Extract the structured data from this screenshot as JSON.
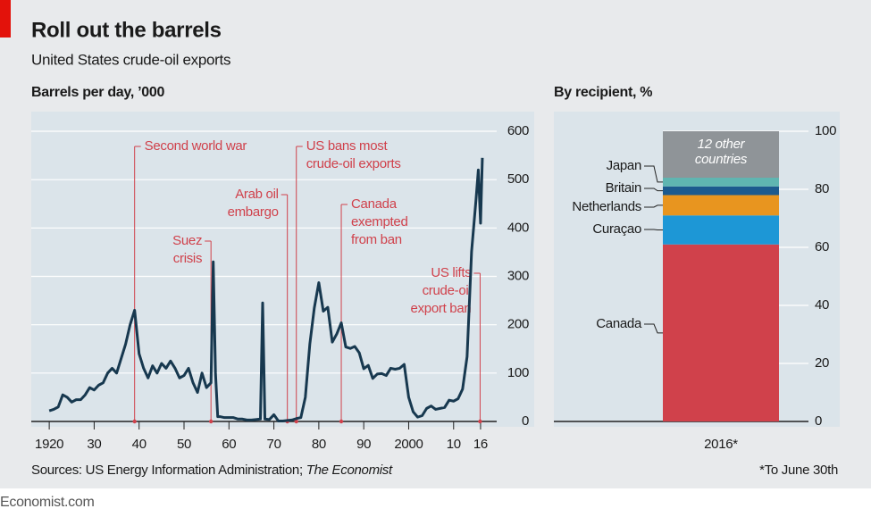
{
  "title": "Roll out the barrels",
  "subtitle": "United States crude-oil exports",
  "brand": "Economist.com",
  "source": [
    "Sources: US Energy Information Administration; ",
    "The Economist"
  ],
  "chart_data": [
    {
      "type": "line",
      "title": "Barrels per day, ’000",
      "color": "#17384f",
      "x": [
        1920,
        1921,
        1922,
        1923,
        1924,
        1925,
        1926,
        1927,
        1928,
        1929,
        1930,
        1931,
        1932,
        1933,
        1934,
        1935,
        1936,
        1937,
        1938,
        1939,
        1940,
        1941,
        1942,
        1943,
        1944,
        1945,
        1946,
        1947,
        1948,
        1949,
        1950,
        1951,
        1952,
        1953,
        1954,
        1955,
        1956,
        1956.5,
        1957,
        1957.5,
        1958,
        1959,
        1960,
        1961,
        1962,
        1963,
        1964,
        1965,
        1966,
        1967,
        1967.5,
        1968,
        1969,
        1970,
        1971,
        1972,
        1973,
        1974,
        1975,
        1976,
        1977,
        1978,
        1979,
        1980,
        1981,
        1982,
        1983,
        1984,
        1985,
        1986,
        1987,
        1988,
        1989,
        1990,
        1991,
        1992,
        1993,
        1994,
        1995,
        1996,
        1997,
        1998,
        1999,
        2000,
        2001,
        2002,
        2003,
        2004,
        2005,
        2006,
        2007,
        2008,
        2009,
        2010,
        2011,
        2012,
        2013,
        2014,
        2015,
        2015.5,
        2016,
        2016.4
      ],
      "values": [
        22,
        25,
        30,
        55,
        50,
        40,
        45,
        45,
        55,
        70,
        65,
        75,
        80,
        100,
        110,
        100,
        130,
        160,
        200,
        230,
        140,
        110,
        90,
        115,
        100,
        120,
        110,
        125,
        110,
        90,
        95,
        110,
        80,
        60,
        100,
        70,
        80,
        330,
        100,
        10,
        10,
        8,
        8,
        8,
        5,
        5,
        3,
        3,
        4,
        5,
        245,
        5,
        4,
        14,
        1,
        1,
        2,
        3,
        6,
        8,
        50,
        160,
        235,
        287,
        228,
        236,
        164,
        181,
        204,
        154,
        151,
        155,
        142,
        109,
        116,
        89,
        98,
        99,
        95,
        110,
        108,
        110,
        118,
        50,
        20,
        9,
        12,
        27,
        32,
        25,
        27,
        29,
        44,
        42,
        47,
        67,
        134,
        351,
        460,
        520,
        410,
        545
      ],
      "xlim": [
        1916,
        2018
      ],
      "xticks": [
        {
          "value": 1920,
          "label": "1920"
        },
        {
          "value": 1930,
          "label": "30"
        },
        {
          "value": 1940,
          "label": "40"
        },
        {
          "value": 1950,
          "label": "50"
        },
        {
          "value": 1960,
          "label": "60"
        },
        {
          "value": 1970,
          "label": "70"
        },
        {
          "value": 1980,
          "label": "80"
        },
        {
          "value": 1990,
          "label": "90"
        },
        2000,
        {
          "value": 2010,
          "label": "10"
        },
        {
          "value": 2016,
          "label": "16"
        }
      ],
      "ylim": [
        0,
        600
      ],
      "yticks": [
        0,
        100,
        200,
        300,
        400,
        500,
        600
      ],
      "grid": true,
      "annotations": [
        {
          "x": 1939,
          "lines": [
            "Second world war"
          ]
        },
        {
          "x": 1956,
          "lines": [
            "Suez",
            "crisis"
          ]
        },
        {
          "x": 1973,
          "lines": [
            "Arab oil",
            "embargo"
          ]
        },
        {
          "x": 1975,
          "lines": [
            "US bans most",
            "crude-oil exports"
          ]
        },
        {
          "x": 1985,
          "lines": [
            "Canada",
            "exempted",
            "from ban"
          ]
        },
        {
          "x": 2015.9,
          "lines": [
            "US lifts",
            "crude-oil",
            "export ban"
          ]
        }
      ]
    },
    {
      "type": "stacked_bar",
      "title": "By recipient, %",
      "categories": [
        "2016*"
      ],
      "series": [
        {
          "name": "Canada",
          "color": "#d0414b",
          "values": [
            61
          ]
        },
        {
          "name": "Curaçao",
          "color": "#1d97d6",
          "values": [
            10
          ]
        },
        {
          "name": "Netherlands",
          "color": "#e8951f",
          "values": [
            7
          ]
        },
        {
          "name": "Britain",
          "color": "#1c5a8e",
          "values": [
            3
          ]
        },
        {
          "name": "Japan",
          "color": "#5fb5b1",
          "values": [
            3
          ]
        },
        {
          "name": "12 other countries",
          "color": "#8f9498",
          "values": [
            16
          ]
        }
      ],
      "ylim": [
        0,
        100
      ],
      "yticks": [
        0,
        20,
        40,
        60,
        80,
        100
      ],
      "grid": true,
      "footnote": "*To June 30th"
    }
  ]
}
